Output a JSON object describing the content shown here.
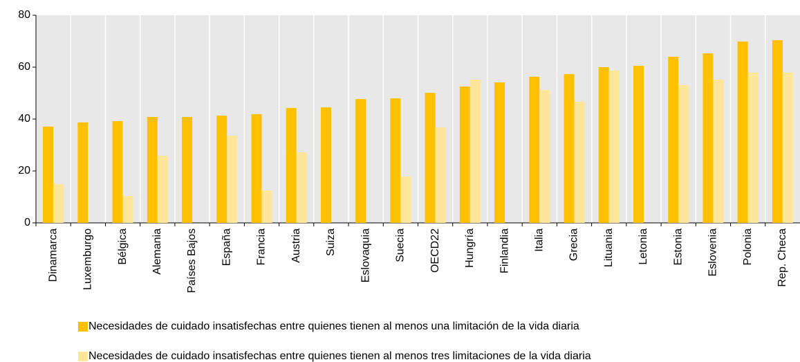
{
  "chart_data": {
    "type": "bar",
    "categories": [
      "Dinamarca",
      "Luxemburgo",
      "Bélgica",
      "Alemania",
      "Países Bajos",
      "España",
      "Francia",
      "Austria",
      "Suiza",
      "Eslovaquia",
      "Suecia",
      "OECD22",
      "Hungría",
      "Finlandia",
      "Italia",
      "Grecia",
      "Lituania",
      "Letonia",
      "Estonia",
      "Eslovenia",
      "Polonia",
      "Rep. Checa"
    ],
    "series": [
      {
        "name": "Necesidades de cuidado insatisfechas entre quienes tienen al menos una limitación de la vida diaria",
        "color": "#ffc000",
        "values": [
          37.1,
          38.7,
          39.2,
          40.8,
          40.8,
          41.3,
          41.9,
          44.3,
          44.5,
          47.7,
          48,
          50.1,
          52.5,
          54.1,
          56.3,
          57.3,
          60,
          60.5,
          64,
          65.3,
          69.9,
          70.4
        ]
      },
      {
        "name": "Necesidades de cuidado insatisfechas entre quienes tienen al menos tres limitaciones de la vida diaria",
        "color": "#ffe699",
        "values": [
          14.9,
          null,
          10.4,
          25.9,
          null,
          33.6,
          12.5,
          27.2,
          null,
          null,
          17.9,
          36.8,
          55.2,
          null,
          51.2,
          46.7,
          58.7,
          null,
          53.1,
          55.2,
          57.9,
          57.9
        ]
      }
    ],
    "ylim": [
      0,
      80
    ],
    "yticks": [
      0,
      20,
      40,
      60,
      80
    ],
    "grid": false
  }
}
